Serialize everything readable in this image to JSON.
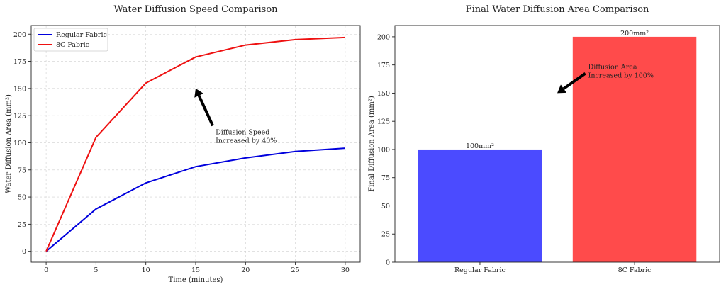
{
  "chart_data": [
    {
      "type": "line",
      "title": "Water Diffusion Speed Comparison",
      "xlabel": "Time (minutes)",
      "ylabel": "Water Diffusion Area (mm²)",
      "x": [
        0,
        5,
        10,
        15,
        20,
        25,
        30
      ],
      "series": [
        {
          "name": "Regular Fabric",
          "color": "#0000dd",
          "values": [
            0,
            39,
            63,
            78,
            86,
            92,
            95
          ]
        },
        {
          "name": "8C Fabric",
          "color": "#ee1111",
          "values": [
            0,
            105,
            155,
            179,
            190,
            195,
            197
          ]
        }
      ],
      "xlim": [
        -1.5,
        31.5
      ],
      "ylim": [
        -10,
        208
      ],
      "xticks": [
        "0",
        "5",
        "10",
        "15",
        "20",
        "25",
        "30"
      ],
      "yticks": [
        "0",
        "25",
        "50",
        "75",
        "100",
        "125",
        "150",
        "175",
        "200"
      ],
      "grid": true,
      "legend": "top-left",
      "annotation": {
        "lines": [
          "Diffusion Speed",
          "Increased by 40%"
        ],
        "text_at": [
          17,
          100
        ],
        "arrow_to": [
          15,
          150
        ]
      }
    },
    {
      "type": "bar",
      "title": "Final Water Diffusion Area Comparison",
      "xlabel": "",
      "ylabel": "Final Diffusion Area (mm²)",
      "categories": [
        "Regular Fabric",
        "8C Fabric"
      ],
      "values": [
        100,
        200
      ],
      "colors": [
        "#4b4bff",
        "#ff4b4b"
      ],
      "data_labels": [
        "100mm²",
        "200mm²"
      ],
      "ylim": [
        0,
        210
      ],
      "yticks": [
        "0",
        "25",
        "50",
        "75",
        "100",
        "125",
        "150",
        "175",
        "200"
      ],
      "grid": false,
      "annotation": {
        "lines": [
          "Diffusion Area",
          "Increased by 100%"
        ],
        "text_at": [
          0.7,
          170
        ],
        "arrow_to": [
          0.5,
          150
        ]
      }
    }
  ]
}
